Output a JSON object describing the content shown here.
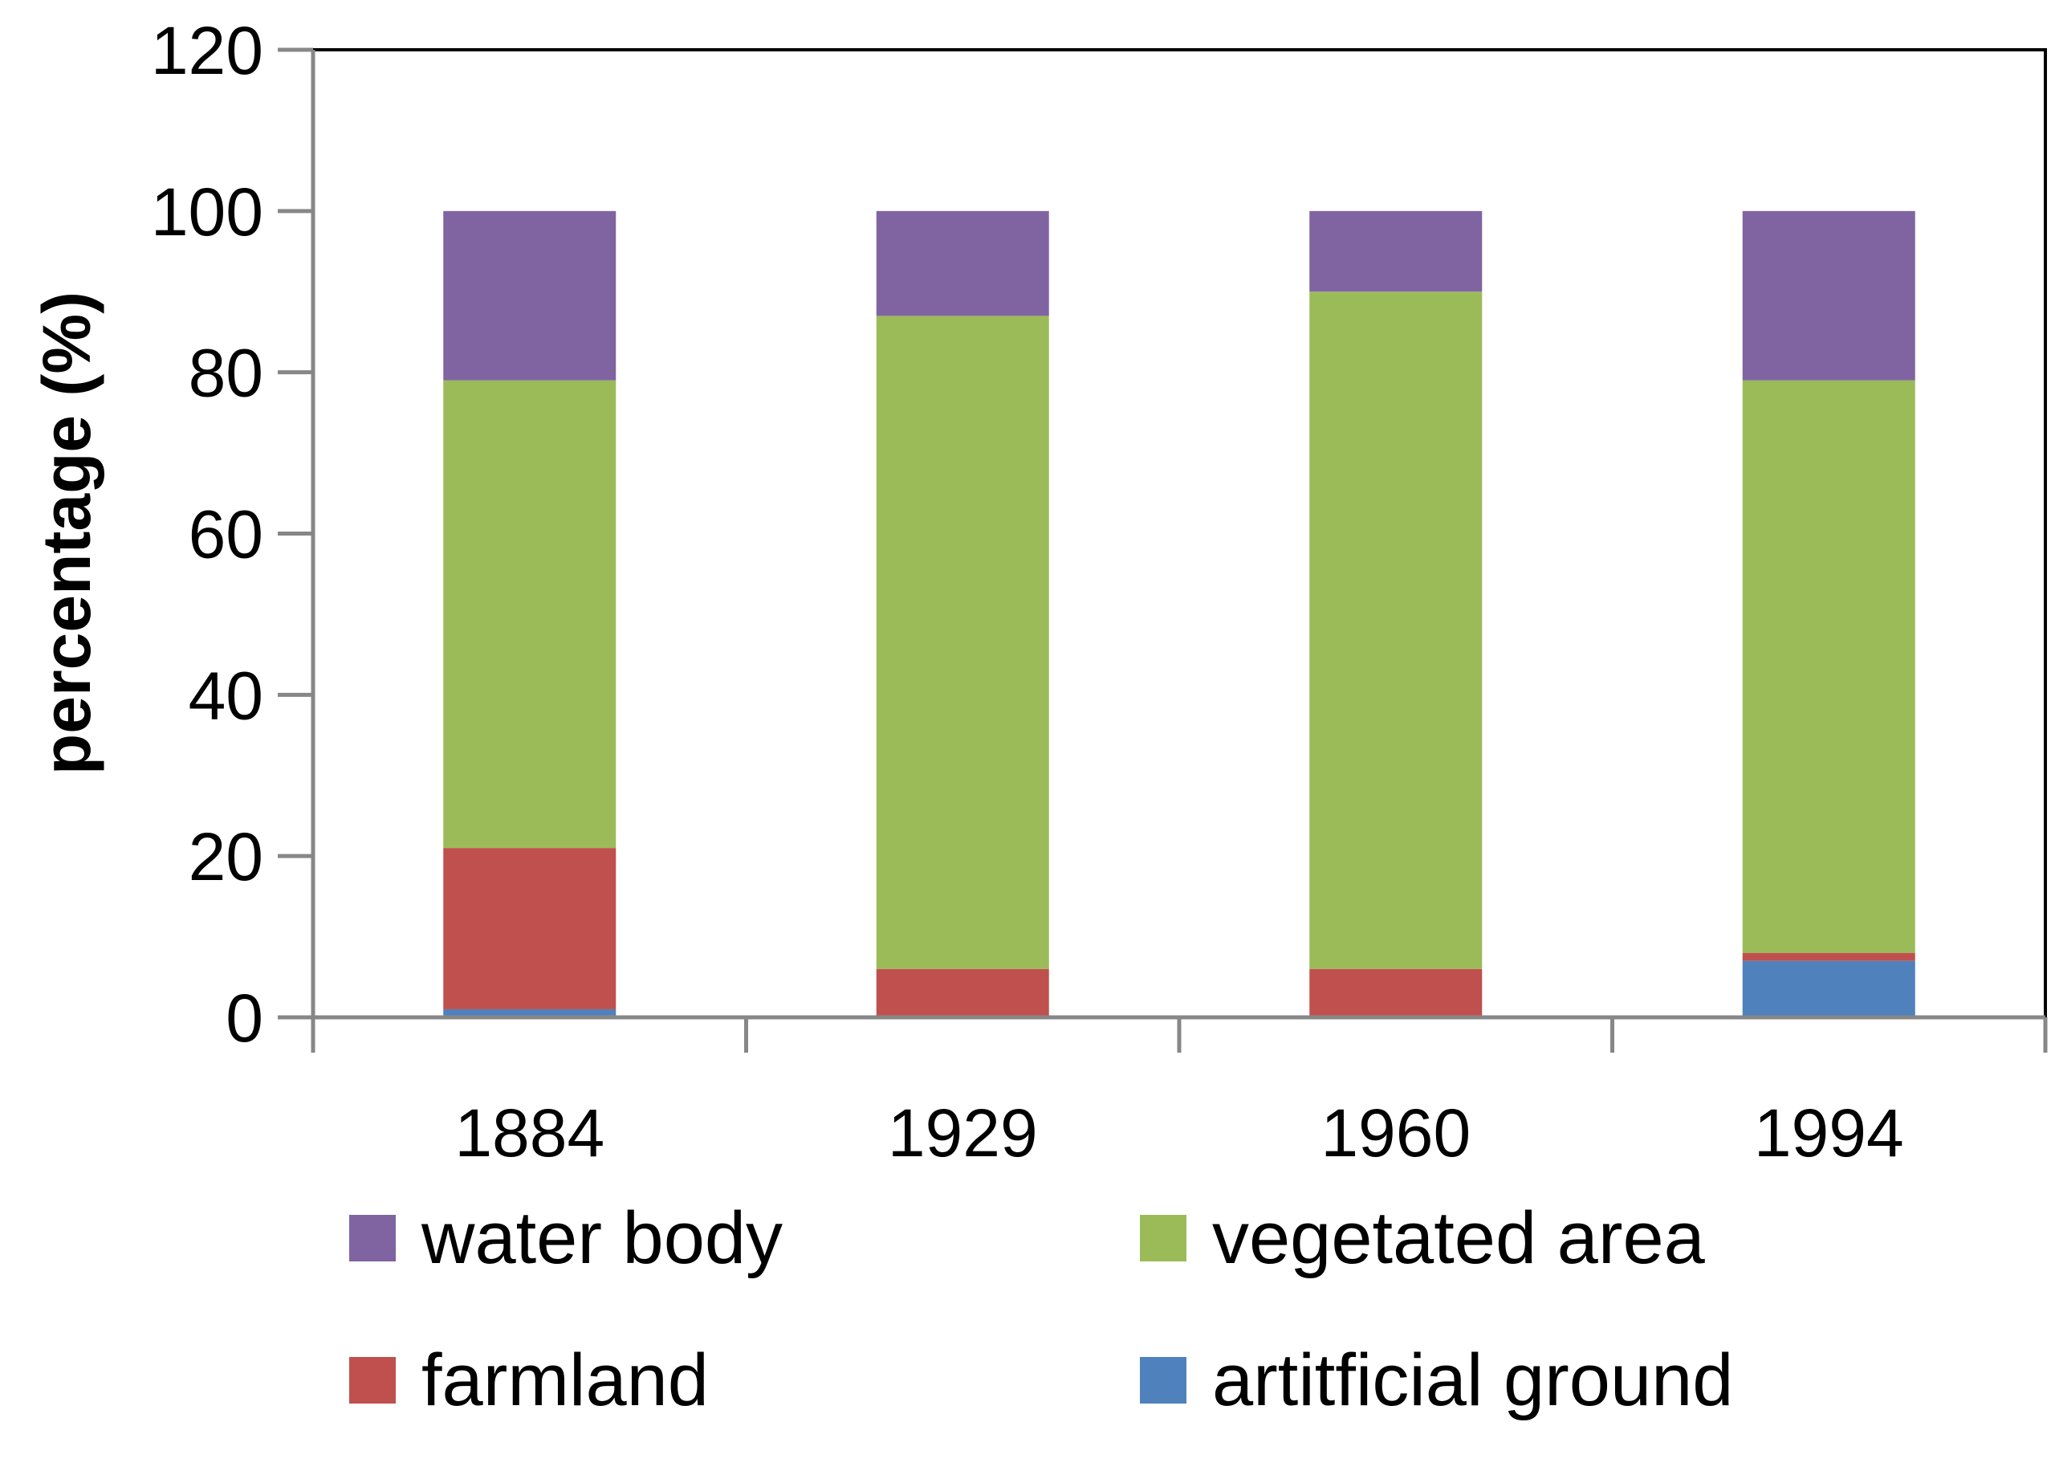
{
  "chart_data": {
    "type": "bar",
    "stacked": true,
    "title": "",
    "xlabel": "",
    "ylabel": "percentage (%)",
    "ylim": [
      0,
      120
    ],
    "yticks": [
      0,
      20,
      40,
      60,
      80,
      100,
      120
    ],
    "grid": false,
    "legend_position": "bottom",
    "categories": [
      "1884",
      "1929",
      "1960",
      "1994"
    ],
    "series": [
      {
        "name": "artitficial ground",
        "color": "#4F81BD",
        "values": [
          1,
          0,
          0,
          7
        ]
      },
      {
        "name": "farmland",
        "color": "#C0504D",
        "values": [
          20,
          6,
          6,
          1
        ]
      },
      {
        "name": "vegetated area",
        "color": "#9BBB59",
        "values": [
          58,
          81,
          84,
          71
        ]
      },
      {
        "name": "water body",
        "color": "#8064A2",
        "values": [
          21,
          13,
          10,
          21
        ]
      }
    ],
    "legend_order": [
      "water body",
      "vegetated area",
      "farmland",
      "artitficial ground"
    ]
  }
}
